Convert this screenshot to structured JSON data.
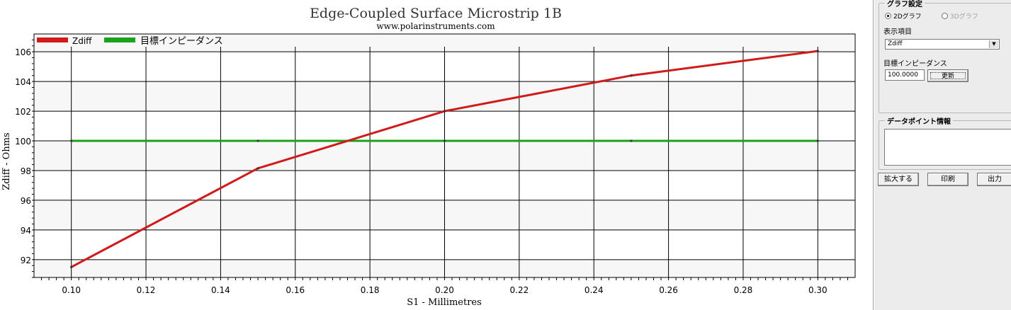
{
  "chart_data": {
    "type": "line",
    "title": "Edge-Coupled Surface Microstrip 1B",
    "subtitle": "www.polarinstruments.com",
    "xlabel": "S1 - Millimetres",
    "ylabel": "Zdiff - Ohms",
    "xlim": [
      0.09,
      0.31
    ],
    "ylim": [
      90.8,
      107.2
    ],
    "x_ticks": [
      "0.10",
      "0.12",
      "0.14",
      "0.16",
      "0.18",
      "0.20",
      "0.22",
      "0.24",
      "0.26",
      "0.28",
      "0.30"
    ],
    "y_ticks": [
      "92",
      "94",
      "96",
      "98",
      "100",
      "102",
      "104",
      "106"
    ],
    "grid": true,
    "legend_position": "top-left",
    "series": [
      {
        "name": "Zdiff",
        "color": "#d11a1a",
        "x": [
          0.1,
          0.15,
          0.2,
          0.25,
          0.3
        ],
        "y": [
          91.5,
          98.15,
          102.0,
          104.4,
          106.05
        ]
      },
      {
        "name": "目標インピーダンス",
        "color": "#1aa31a",
        "x": [
          0.1,
          0.15,
          0.2,
          0.25,
          0.3
        ],
        "y": [
          100,
          100,
          100,
          100,
          100
        ]
      }
    ]
  },
  "panel": {
    "graph_settings_title": "グラフ設定",
    "radio_2d": "2Dグラフ",
    "radio_3d": "3Dグラフ",
    "display_item_label": "表示項目",
    "display_item_value": "Zdiff",
    "target_impedance_label": "目標インピーダンス",
    "target_impedance_value": "100.0000",
    "update_button": "更新",
    "data_point_info_title": "データポイント情報",
    "zoom_button": "拡大する",
    "print_button": "印刷",
    "export_button": "出力"
  }
}
